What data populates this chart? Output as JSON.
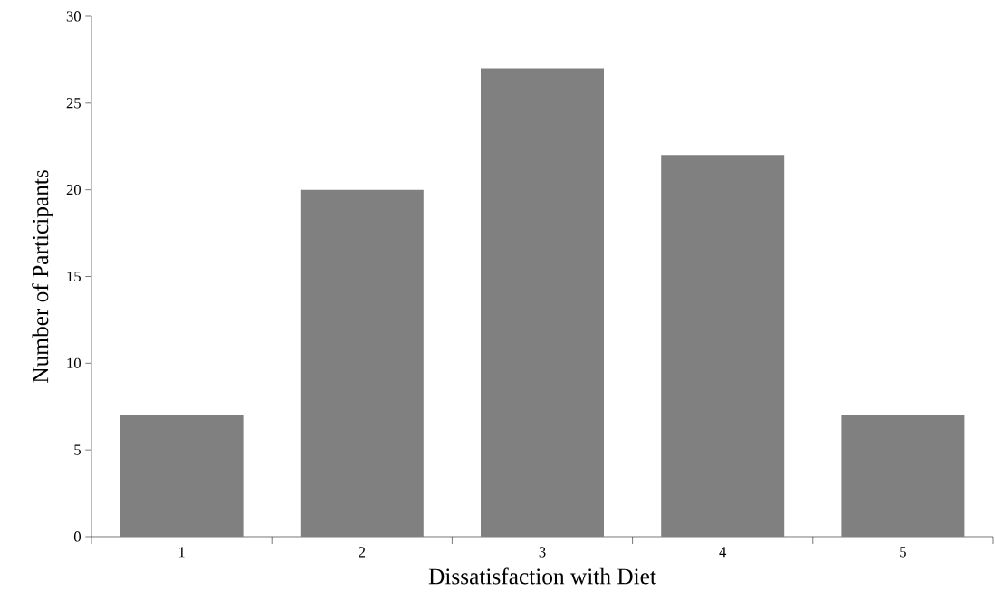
{
  "chart_data": {
    "type": "bar",
    "xlabel": "Dissatisfaction with Diet",
    "ylabel": "Number of Participants",
    "categories": [
      "1",
      "2",
      "3",
      "4",
      "5"
    ],
    "values": [
      7,
      20,
      27,
      22,
      7
    ],
    "color": "#808080",
    "ylim": [
      0,
      30
    ],
    "yticks": [
      0,
      5,
      10,
      15,
      20,
      25,
      30
    ]
  }
}
